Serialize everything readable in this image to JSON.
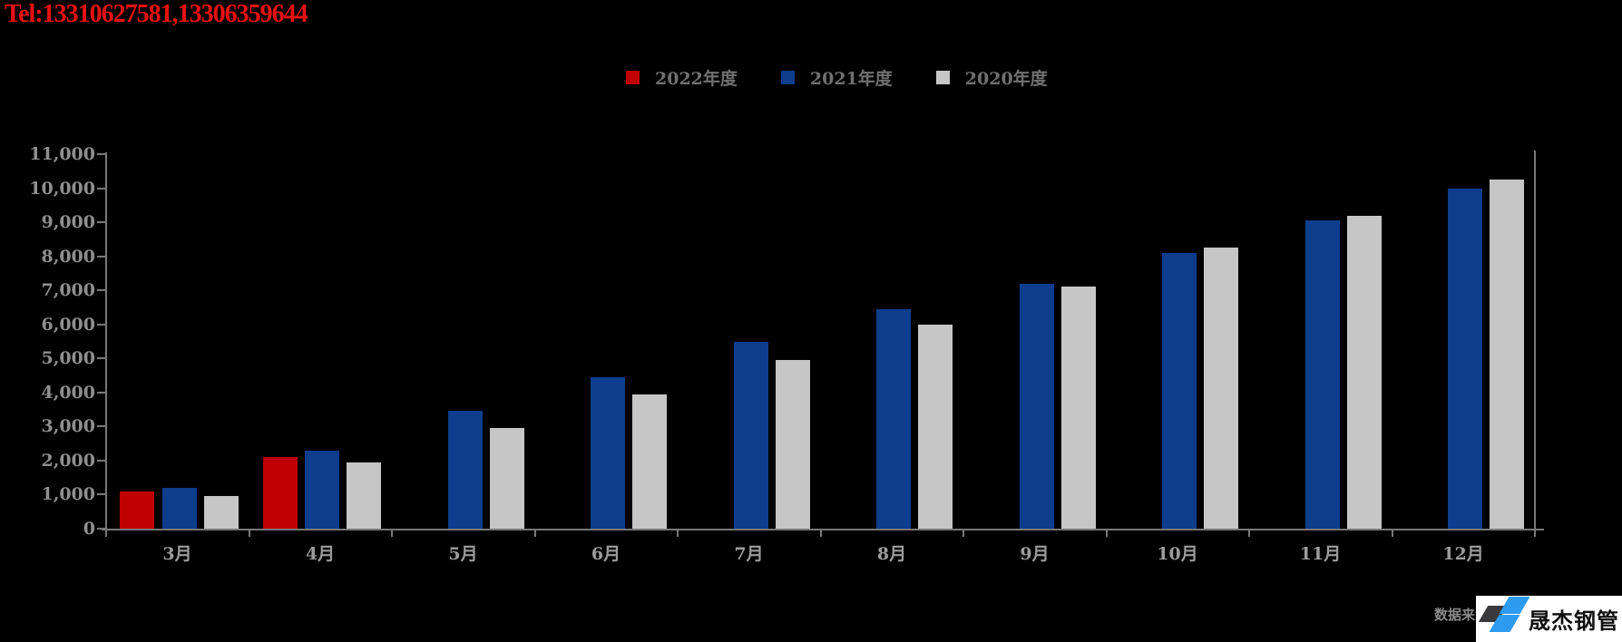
{
  "watermark": {
    "tel": "Tel:13310627581,13306359644"
  },
  "legend": [
    {
      "label": "2022年度",
      "color": "#c00000"
    },
    {
      "label": "2021年度",
      "color": "#0d3d8c"
    },
    {
      "label": "2020年度",
      "color": "#c6c6c6"
    }
  ],
  "chart_data": {
    "type": "bar",
    "title": "",
    "xlabel": "",
    "ylabel": "",
    "categories": [
      "3月",
      "4月",
      "5月",
      "6月",
      "7月",
      "8月",
      "9月",
      "10月",
      "11月",
      "12月"
    ],
    "series": [
      {
        "name": "2022年度",
        "color": "#c00000",
        "values": [
          1100,
          2100,
          null,
          null,
          null,
          null,
          null,
          null,
          null,
          null
        ]
      },
      {
        "name": "2021年度",
        "color": "#0d3d8c",
        "values": [
          1200,
          2300,
          3450,
          4450,
          5500,
          6450,
          7200,
          8100,
          9050,
          10000
        ]
      },
      {
        "name": "2020年度",
        "color": "#c6c6c6",
        "values": [
          950,
          1950,
          2950,
          3950,
          4950,
          6000,
          7100,
          8250,
          9200,
          10250
        ]
      }
    ],
    "ylim": [
      0,
      11000
    ],
    "ytick_step": 1000,
    "grid": false,
    "legend_position": "top"
  },
  "footer": {
    "source_text": "数据来源:",
    "logo_text": "晟杰钢管"
  },
  "colors": {
    "background": "#000000",
    "axis": "#787878",
    "tick_label": "#8f8f8f",
    "legend_text": "#707070",
    "watermark_red": "#e81111",
    "logo_blue": "#2d9bf0",
    "logo_dark": "#3a3a3c"
  }
}
